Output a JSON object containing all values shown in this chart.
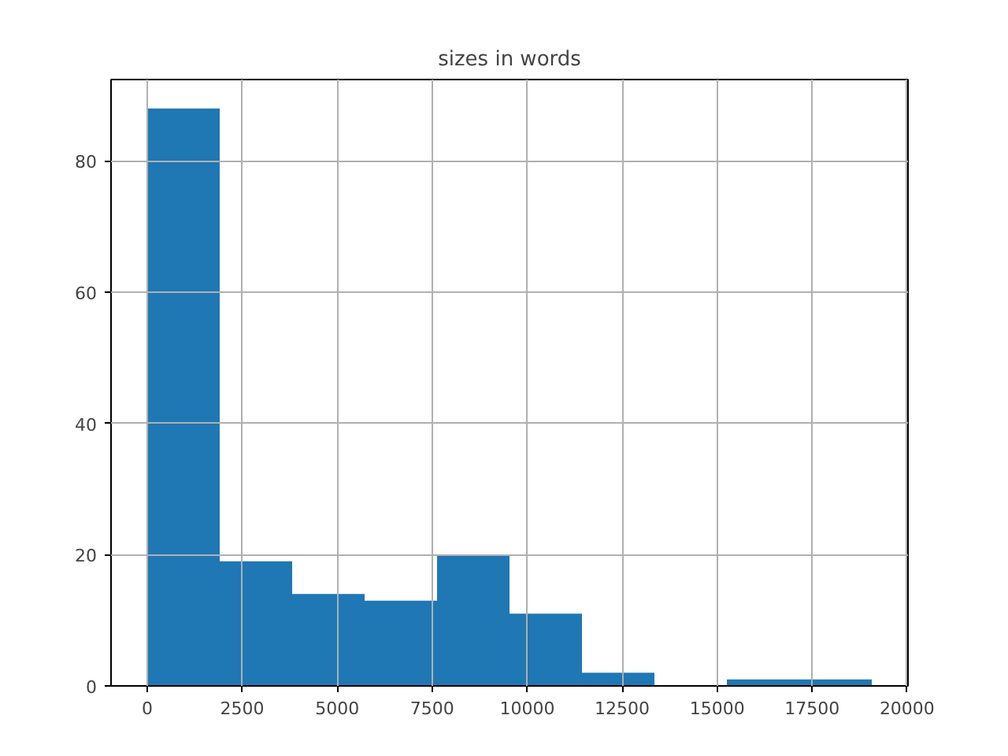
{
  "chart_data": {
    "type": "histogram",
    "title": "sizes in words",
    "bins": [
      0,
      1907,
      3814,
      5721,
      7628,
      9535,
      11442,
      13349,
      15256,
      17163,
      19070
    ],
    "values": [
      88,
      19,
      14,
      13,
      20,
      11,
      2,
      0,
      1,
      1
    ],
    "color": "#1f77b4",
    "xlim": [
      -953,
      20023
    ],
    "ylim": [
      0,
      92.4
    ],
    "xticks": [
      0,
      2500,
      5000,
      7500,
      10000,
      12500,
      15000,
      17500,
      20000
    ],
    "yticks": [
      0,
      20,
      40,
      60,
      80
    ],
    "grid": true
  }
}
